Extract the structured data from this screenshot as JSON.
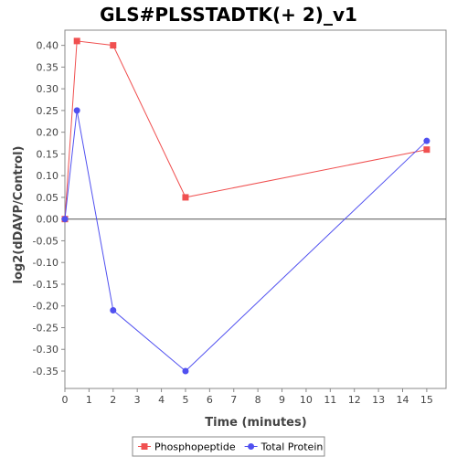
{
  "chart_data": {
    "type": "line",
    "title": "GLS#PLSSTADTK(+ 2)_v1",
    "xlabel": "Time (minutes)",
    "ylabel": "log2(dDAVP/Control)",
    "x_ticks": [
      0,
      1,
      2,
      3,
      4,
      5,
      6,
      7,
      8,
      9,
      10,
      11,
      12,
      13,
      14,
      15
    ],
    "y_ticks": [
      0.4,
      0.35,
      0.3,
      0.25,
      0.2,
      0.15,
      0.1,
      0.05,
      0.0,
      -0.05,
      -0.1,
      -0.15,
      -0.2,
      -0.25,
      -0.3,
      -0.35
    ],
    "y_tick_labels": [
      "0.40",
      "0.35",
      "0.30",
      "0.25",
      "0.20",
      "0.15",
      "0.10",
      "0.05",
      "0.00",
      "-0.05",
      "-0.10",
      "-0.15",
      "-0.20",
      "-0.25",
      "-0.30",
      "-0.35"
    ],
    "xlim": [
      0,
      15.8
    ],
    "ylim": [
      -0.39,
      0.435
    ],
    "zero_line": true,
    "grid": false,
    "legend_position": "bottom",
    "series": [
      {
        "name": "Phosphopeptide",
        "color": "#f05050",
        "marker": "square",
        "x": [
          0,
          0.5,
          2,
          5,
          15
        ],
        "y": [
          0.0,
          0.41,
          0.4,
          0.05,
          0.16
        ]
      },
      {
        "name": "Total Protein",
        "color": "#5050f0",
        "marker": "circle",
        "x": [
          0,
          0.5,
          2,
          5,
          15
        ],
        "y": [
          0.0,
          0.25,
          -0.21,
          -0.35,
          0.18
        ]
      }
    ]
  }
}
